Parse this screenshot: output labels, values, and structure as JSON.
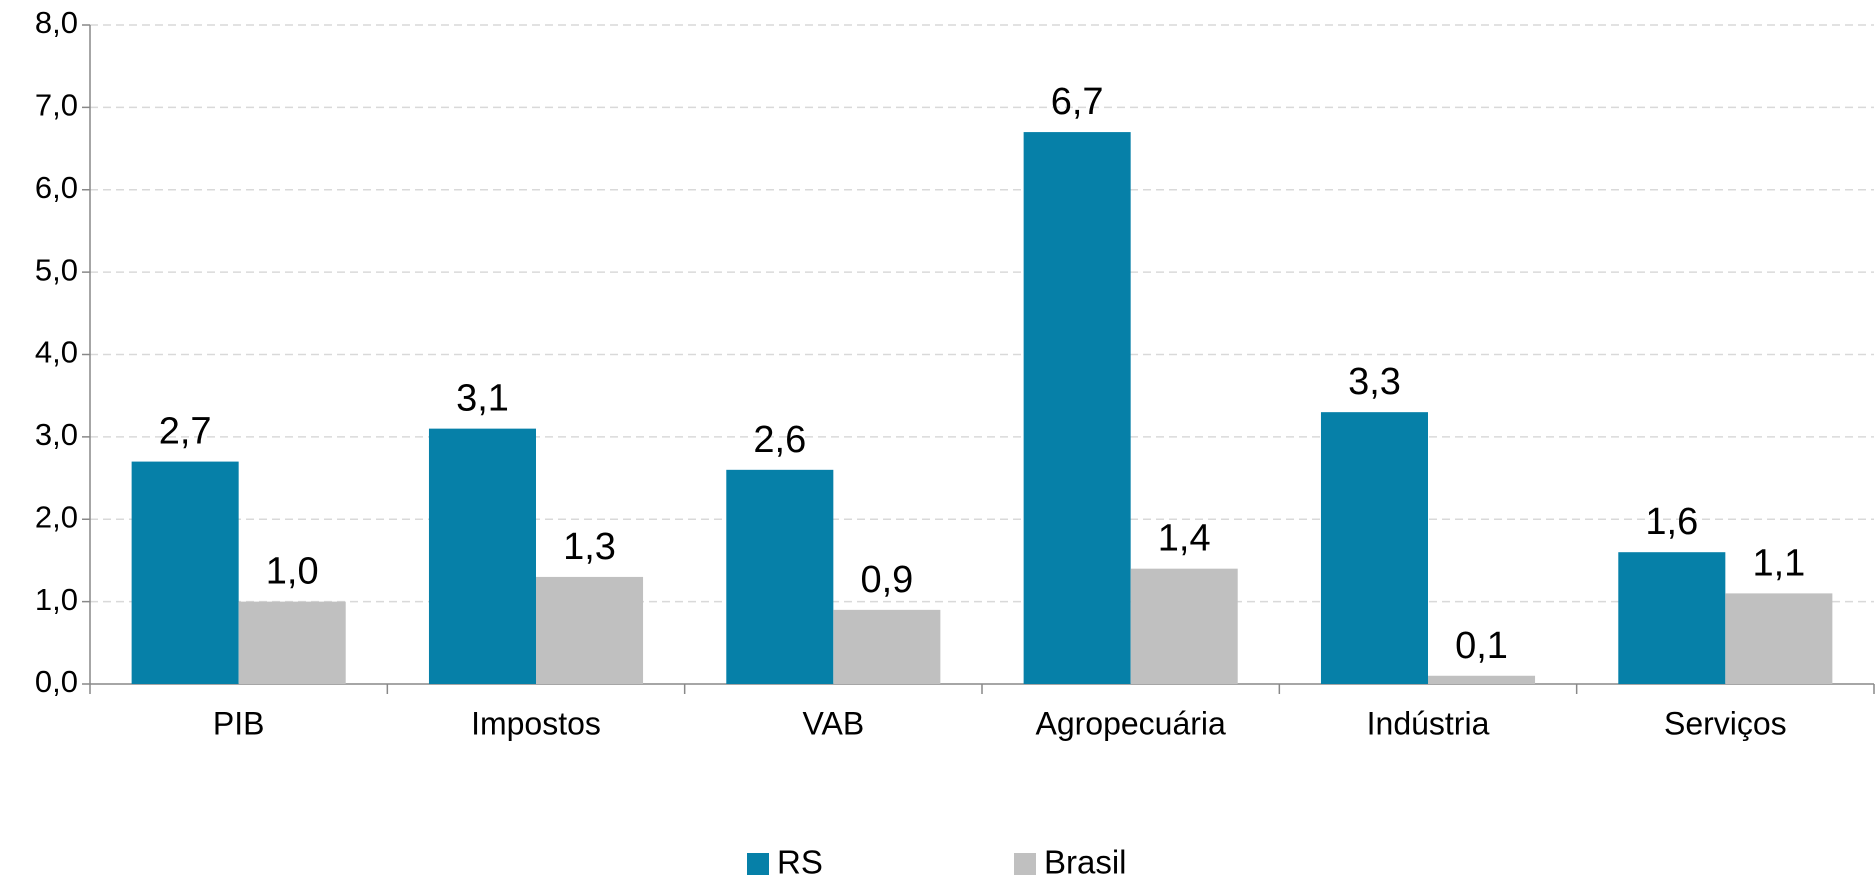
{
  "chart_data": {
    "type": "bar",
    "categories": [
      "PIB",
      "Impostos",
      "VAB",
      "Agropecuária",
      "Indústria",
      "Serviços"
    ],
    "series": [
      {
        "name": "RS",
        "color": "#0680a8",
        "values": [
          2.7,
          3.1,
          2.6,
          6.7,
          3.3,
          1.6
        ],
        "value_labels": [
          "2,7",
          "3,1",
          "2,6",
          "6,7",
          "3,3",
          "1,6"
        ]
      },
      {
        "name": "Brasil",
        "color": "#c0c0c0",
        "values": [
          1.0,
          1.3,
          0.9,
          1.4,
          0.1,
          1.1
        ],
        "value_labels": [
          "1,0",
          "1,3",
          "0,9",
          "1,4",
          "0,1",
          "1,1"
        ]
      }
    ],
    "ylim": [
      0,
      8
    ],
    "yticks": [
      {
        "value": 0,
        "label": "0,0"
      },
      {
        "value": 1,
        "label": "1,0"
      },
      {
        "value": 2,
        "label": "2,0"
      },
      {
        "value": 3,
        "label": "3,0"
      },
      {
        "value": 4,
        "label": "4,0"
      },
      {
        "value": 5,
        "label": "5,0"
      },
      {
        "value": 6,
        "label": "6,0"
      },
      {
        "value": 7,
        "label": "7,0"
      },
      {
        "value": 8,
        "label": "8,0"
      }
    ],
    "grid": true,
    "legend": "bottom"
  }
}
